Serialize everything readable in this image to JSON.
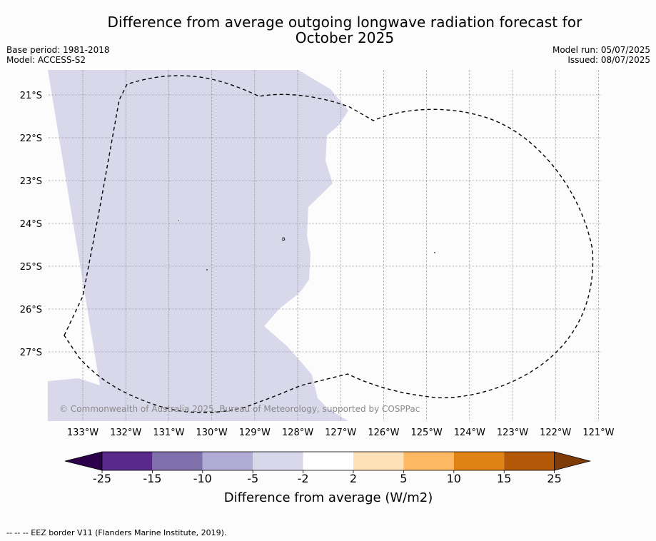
{
  "title_line1": "Difference from average outgoing longwave radiation forecast for",
  "title_line2": "October 2025",
  "meta_left": {
    "base_period": "Base period: 1981-2018",
    "model": "Model: ACCESS-S2"
  },
  "meta_right": {
    "model_run": "Model run: 05/07/2025",
    "issued": "Issued: 08/07/2025"
  },
  "map": {
    "lat_labels": [
      "21°S",
      "22°S",
      "23°S",
      "24°S",
      "25°S",
      "26°S",
      "27°S"
    ],
    "lon_labels": [
      "133°W",
      "132°W",
      "131°W",
      "130°W",
      "129°W",
      "128°W",
      "127°W",
      "126°W",
      "125°W",
      "124°W",
      "123°W",
      "122°W",
      "121°W"
    ],
    "fill_color_category": "-5 to -2",
    "fill_color": "#d8d8ea",
    "boundary_style": "dashed",
    "copyright": "© Commonwealth of Australia 2025, Bureau of Meteorology, supported by COSPPac"
  },
  "colorbar": {
    "ticks": [
      "-25",
      "-15",
      "-10",
      "-5",
      "-2",
      "2",
      "5",
      "10",
      "15",
      "25"
    ],
    "colors": [
      "#5a2a8a",
      "#8071ad",
      "#b1acd3",
      "#d8d8ea",
      "#ffffff",
      "#fee0b6",
      "#fdb863",
      "#e08214",
      "#b35806"
    ],
    "under_color": "#2d004b",
    "over_color": "#7f3b08",
    "label": "Difference from average (W/m2)"
  },
  "footnote": "--  --  -- EEZ border V11 (Flanders Marine Institute, 2019)."
}
